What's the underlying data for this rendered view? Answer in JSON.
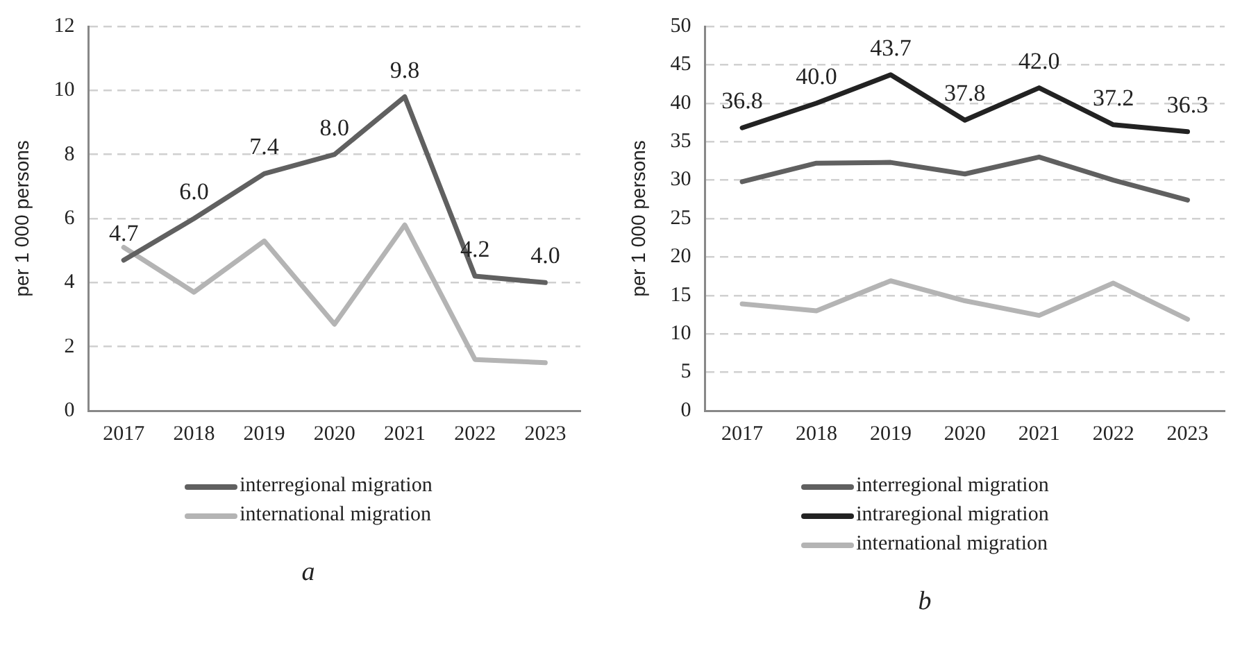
{
  "chart_data": [
    {
      "type": "line",
      "categories": [
        "2017",
        "2018",
        "2019",
        "2020",
        "2021",
        "2022",
        "2023"
      ],
      "ylabel": "per 1 000 persons",
      "ylim": [
        0,
        12
      ],
      "yticks": [
        0,
        2,
        4,
        6,
        8,
        10,
        12
      ],
      "grid": "y",
      "legend": "bottom",
      "marker": "none",
      "line_style": "solid",
      "annotations": [
        "a"
      ],
      "series": [
        {
          "name": "interregional migration",
          "color": "#606060",
          "values": [
            4.7,
            6.0,
            7.4,
            8.0,
            9.8,
            4.2,
            4.0
          ],
          "value_labels": [
            "4.7",
            "6.0",
            "7.4",
            "8.0",
            "9.8",
            "4.2",
            "4.0"
          ]
        },
        {
          "name": "international migration",
          "color": "#b4b4b4",
          "values": [
            5.1,
            3.7,
            5.3,
            2.7,
            5.8,
            1.6,
            1.5
          ]
        }
      ]
    },
    {
      "type": "line",
      "categories": [
        "2017",
        "2018",
        "2019",
        "2020",
        "2021",
        "2022",
        "2023"
      ],
      "ylabel": "per 1 000 persons",
      "ylim": [
        0,
        50
      ],
      "yticks": [
        0,
        5,
        10,
        15,
        20,
        25,
        30,
        35,
        40,
        45,
        50
      ],
      "grid": "y",
      "legend": "bottom",
      "marker": "none",
      "line_style": "solid",
      "annotations": [
        "b"
      ],
      "series": [
        {
          "name": "interregional migration",
          "color": "#606060",
          "values": [
            29.8,
            32.2,
            32.3,
            30.8,
            33.0,
            30.0,
            27.4
          ]
        },
        {
          "name": "intraregional migration",
          "color": "#222222",
          "values": [
            36.8,
            40.0,
            43.7,
            37.8,
            42.0,
            37.2,
            36.3
          ],
          "value_labels": [
            "36.8",
            "40.0",
            "43.7",
            "37.8",
            "42.0",
            "37.2",
            "36.3"
          ]
        },
        {
          "name": "international migration",
          "color": "#b4b4b4",
          "values": [
            13.9,
            13.0,
            16.9,
            14.3,
            12.4,
            16.6,
            11.9
          ]
        }
      ]
    }
  ]
}
